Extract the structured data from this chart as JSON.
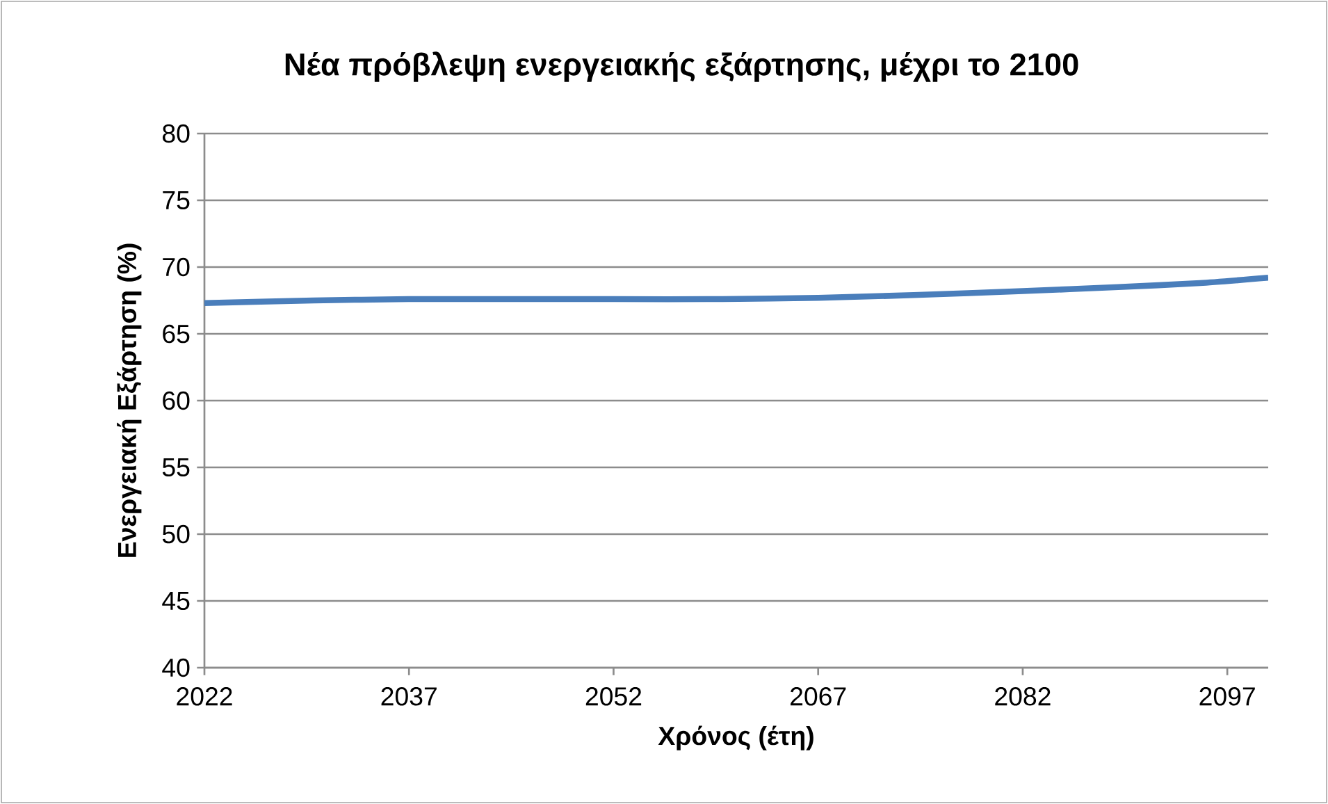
{
  "chart_data": {
    "type": "line",
    "title": "Νέα πρόβλεψη ενεργειακής εξάρτησης, μέχρι το 2100",
    "xlabel": "Χρόνος (έτη)",
    "ylabel": "Ενεργειακή Εξάρτηση (%)",
    "x": [
      2022,
      2030,
      2037,
      2045,
      2052,
      2060,
      2067,
      2074,
      2082,
      2089,
      2095,
      2100
    ],
    "series": [
      {
        "color": "#4a7ebb",
        "values": [
          67.3,
          67.5,
          67.6,
          67.6,
          67.6,
          67.6,
          67.7,
          67.9,
          68.2,
          68.5,
          68.8,
          69.2
        ]
      }
    ],
    "xlim": [
      2022,
      2100
    ],
    "xticks": [
      2022,
      2037,
      2052,
      2067,
      2082,
      2097
    ],
    "ylim": [
      40,
      80
    ],
    "yticks": [
      40,
      45,
      50,
      55,
      60,
      65,
      70,
      75,
      80
    ],
    "grid": "y",
    "marker": "none",
    "line_style": "solid"
  }
}
